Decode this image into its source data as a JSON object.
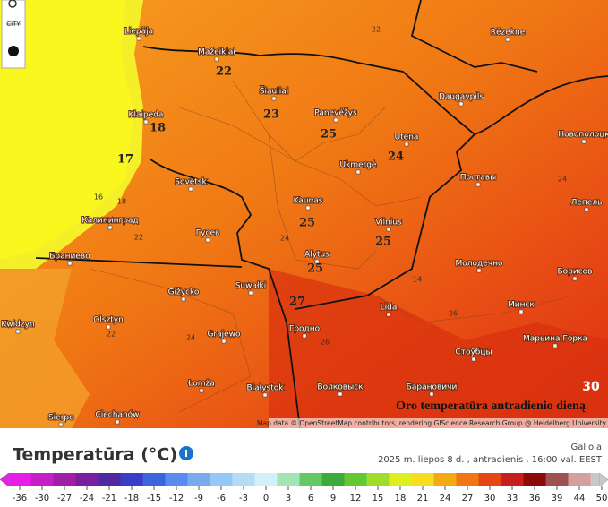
{
  "map": {
    "controls": [
      "CITY"
    ],
    "cities": [
      "Liepāja",
      "Mažeikiai",
      "Šiauliai",
      "Panevėžys",
      "Daugavpils",
      "Rēzekne",
      "Klaipeda",
      "Utena",
      "Ukmergė",
      "Новополоцк",
      "Поставы",
      "Sovetsk",
      "Kaunas",
      "Vilnius",
      "Лепель",
      "Калининград",
      "Гусев",
      "Alytus",
      "Молодечно",
      "Браниево",
      "Борисов",
      "Gižycko",
      "Suwałki",
      "Lida",
      "Минск",
      "Olsztyn",
      "Grajewo",
      "Гродно",
      "Kwidzyn",
      "Марьина Горка",
      "Стоўбцы",
      "Łomża",
      "Białystok",
      "Волковыск",
      "Барановичи",
      "Ciechanów",
      "Sierpc"
    ],
    "temperatures": [
      22,
      23,
      18,
      17,
      25,
      24,
      25,
      25,
      25,
      27
    ],
    "isolines": [
      22,
      16,
      18,
      22,
      24,
      14,
      26,
      24,
      24,
      22,
      26
    ],
    "overlay_title": "Oro temperatūra antradienio dieną",
    "overlay_value": 30,
    "attribution": "Map data © OpenStreetMap contributors, rendering GIScience Research Group @ Heidelberg University"
  },
  "legend": {
    "title": "Temperatūra (°C)",
    "valid_label": "Galioja",
    "valid_time": "2025 m. liepos 8 d. , antradienis , 16:00 val. EEST",
    "ticks": [
      -36,
      -30,
      -27,
      -24,
      -21,
      -18,
      -15,
      -12,
      -9,
      -6,
      -3,
      0,
      3,
      6,
      9,
      12,
      15,
      18,
      21,
      24,
      27,
      30,
      33,
      36,
      39,
      44,
      50
    ],
    "colors": [
      "#e81ee8",
      "#c81ec8",
      "#a01ea8",
      "#7a1ea0",
      "#5028a0",
      "#3c3cc8",
      "#3c64dc",
      "#5a8cf0",
      "#78aaf0",
      "#96c8f5",
      "#b4dcf5",
      "#d2f0f5",
      "#9fe6b4",
      "#64c864",
      "#3caa3c",
      "#64c832",
      "#a0dc28",
      "#dcf01e",
      "#fadc1e",
      "#f5aa14",
      "#f07814",
      "#e64614",
      "#c81e1e",
      "#8c0a0a",
      "#a05050",
      "#d2a0a0",
      "#c8c8c8"
    ]
  }
}
